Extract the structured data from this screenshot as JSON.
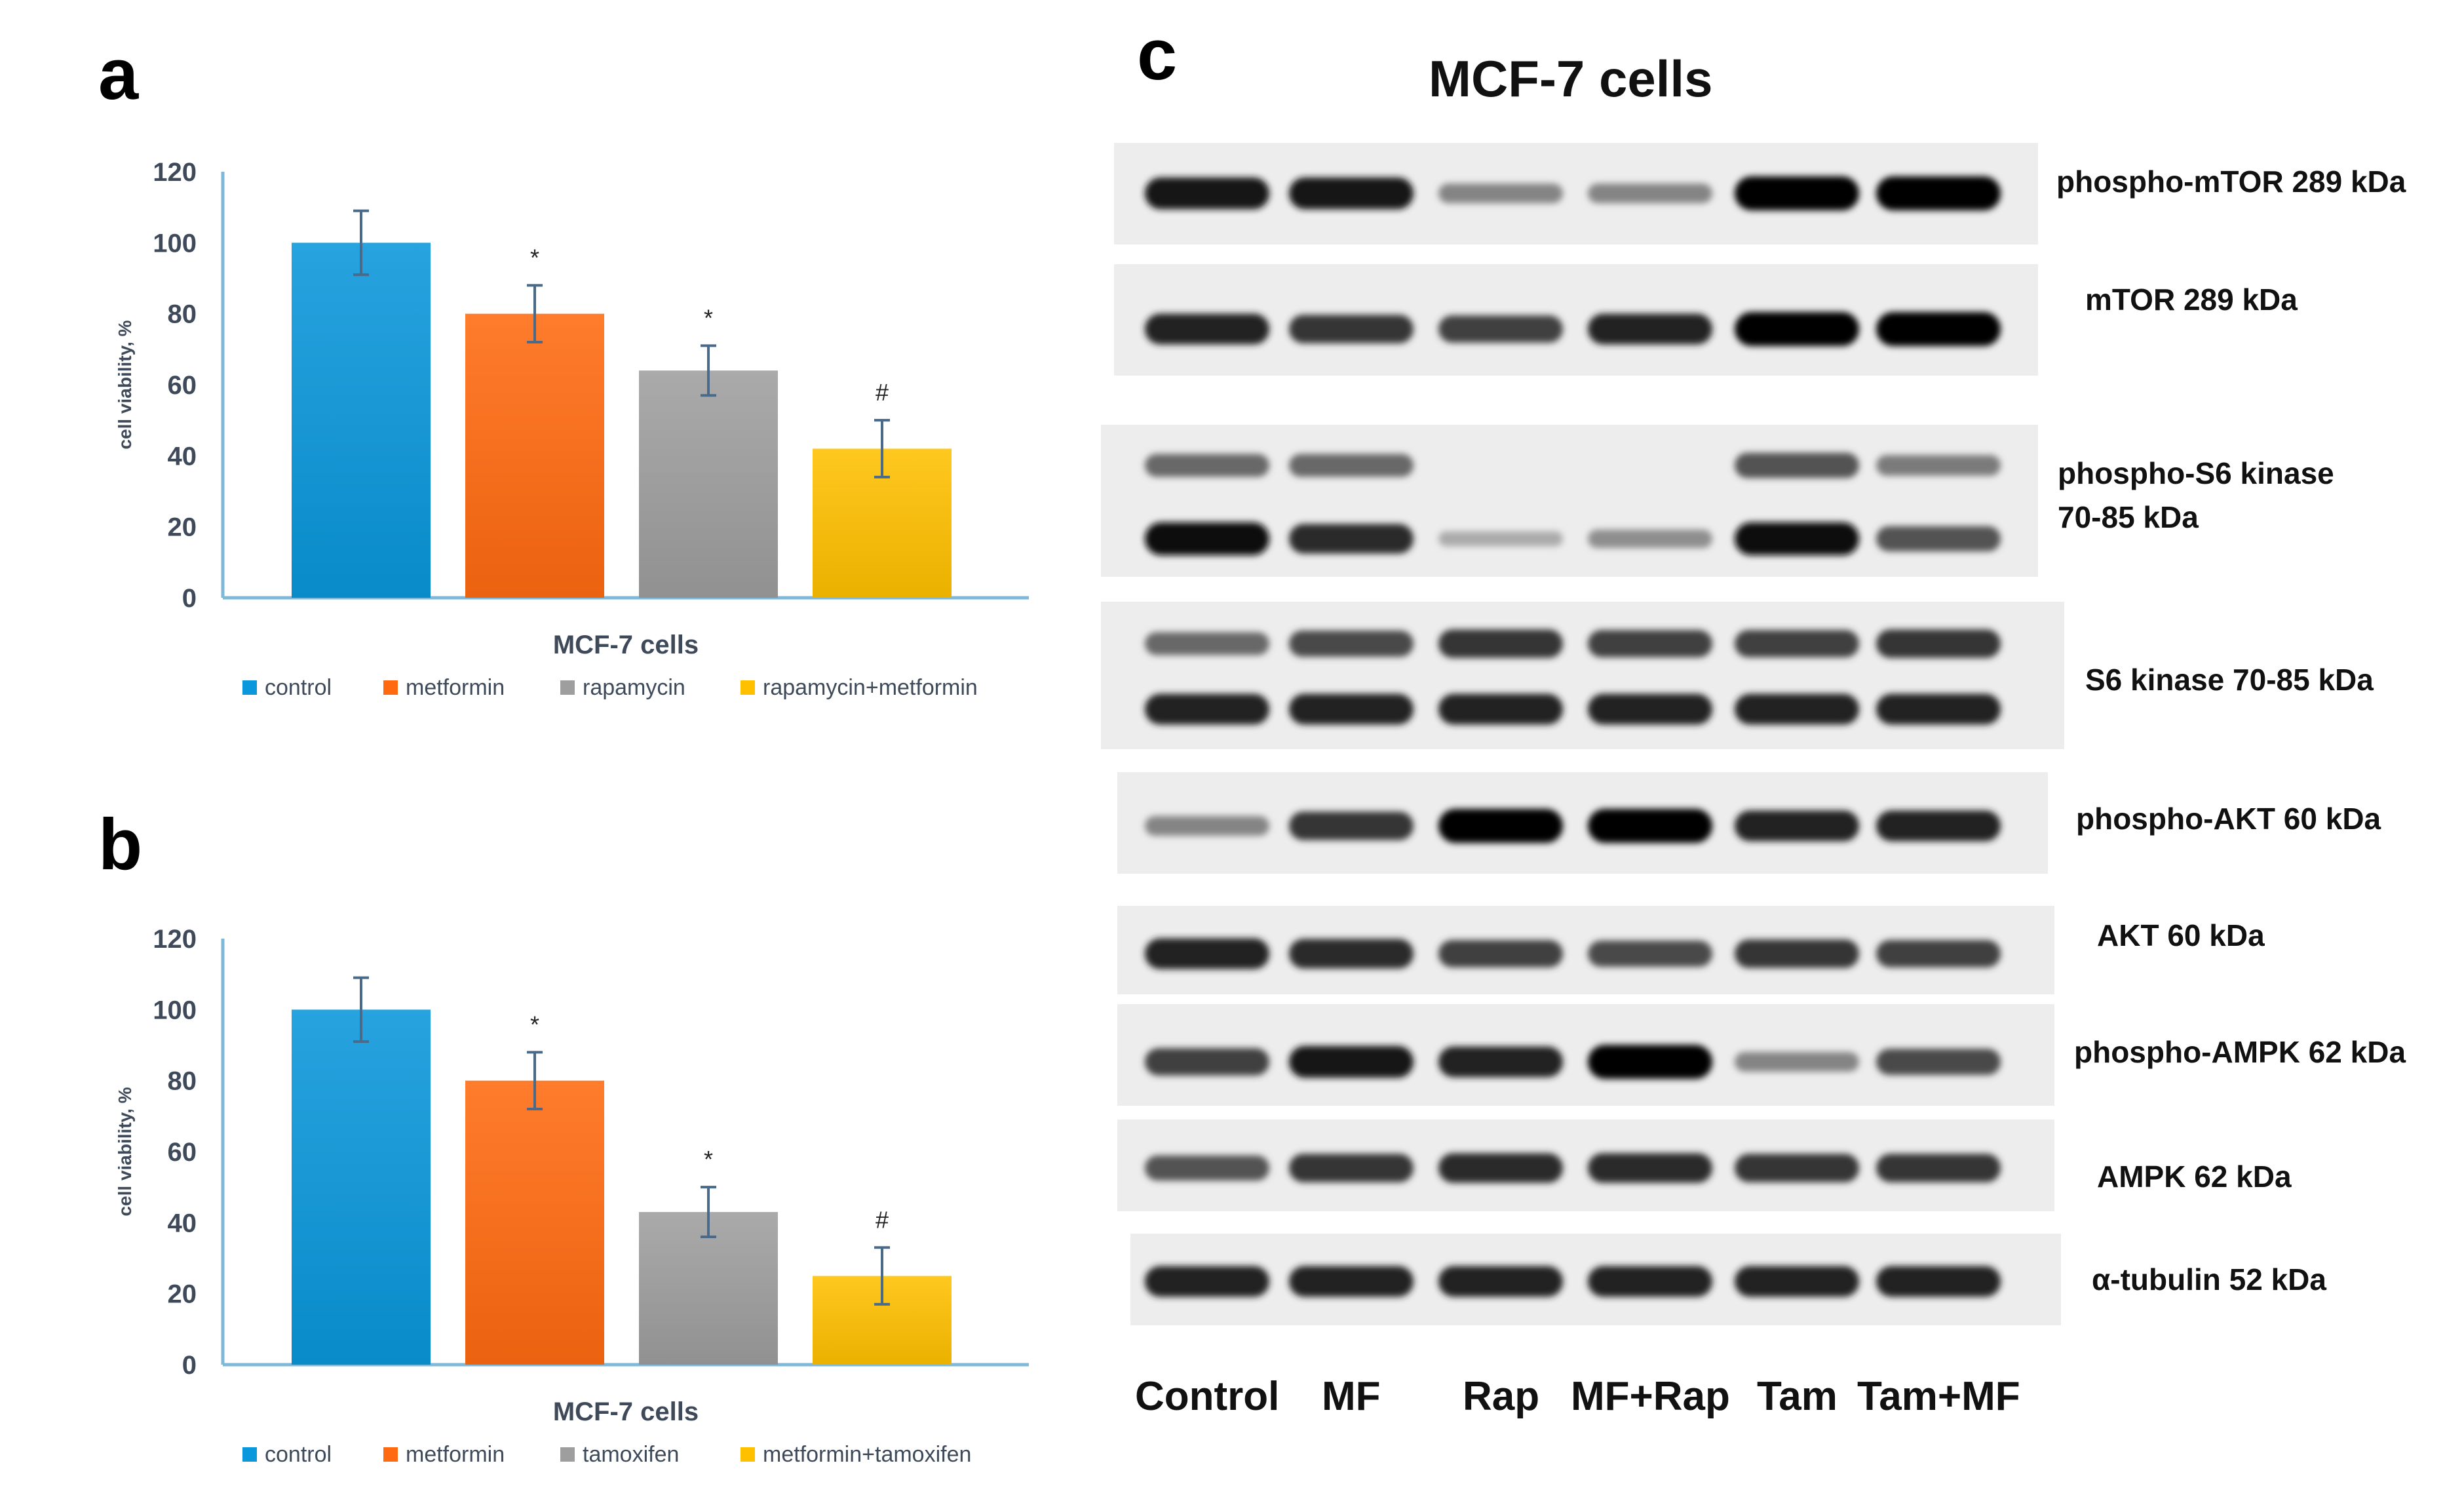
{
  "panels": {
    "a": {
      "letter": "a"
    },
    "b": {
      "letter": "b"
    },
    "c": {
      "letter": "c",
      "title": "MCF-7 cells"
    }
  },
  "chart_data": [
    {
      "id": "a",
      "type": "bar",
      "categories": [
        "control",
        "metformin",
        "rapamycin",
        "rapamycin+metformin"
      ],
      "values": [
        100,
        80,
        64,
        42
      ],
      "errors": [
        9,
        8,
        7,
        8
      ],
      "significance": [
        "",
        "*",
        "*",
        "#"
      ],
      "xlabel": "MCF-7 cells",
      "ylabel": "cell viability, %",
      "ylim": [
        0,
        120
      ],
      "yticks": [
        0,
        20,
        40,
        60,
        80,
        100,
        120
      ],
      "legend": [
        "control",
        "metformin",
        "rapamycin",
        "rapamycin+metformin"
      ],
      "legend_position": "bottom",
      "grid": false,
      "colors": [
        "#0A97DB",
        "#FF6A10",
        "#9E9E9E",
        "#FFC000"
      ]
    },
    {
      "id": "b",
      "type": "bar",
      "categories": [
        "control",
        "metformin",
        "tamoxifen",
        "metformin+tamoxifen"
      ],
      "values": [
        100,
        80,
        43,
        25
      ],
      "errors": [
        9,
        8,
        7,
        8
      ],
      "significance": [
        "",
        "*",
        "*",
        "#"
      ],
      "xlabel": "MCF-7 cells",
      "ylabel": "cell viability, %",
      "ylim": [
        0,
        120
      ],
      "yticks": [
        0,
        20,
        40,
        60,
        80,
        100,
        120
      ],
      "legend": [
        "control",
        "metformin",
        "tamoxifen",
        "metformin+tamoxifen"
      ],
      "legend_position": "bottom",
      "grid": false,
      "colors": [
        "#0A97DB",
        "#FF6A10",
        "#9E9E9E",
        "#FFC000"
      ]
    }
  ],
  "blot": {
    "lanes": [
      "Control",
      "MF",
      "Rap",
      "MF+Rap",
      "Tam",
      "Tam+MF"
    ],
    "rows": [
      {
        "label": "phospho-mTOR 289 kDa",
        "bands": [
          [
            0.9,
            0.9,
            0.35,
            0.35,
            1.0,
            1.0
          ]
        ]
      },
      {
        "label": "mTOR 289 kDa",
        "bands": [
          [
            0.85,
            0.75,
            0.7,
            0.85,
            1.0,
            1.0
          ]
        ]
      },
      {
        "label": "phospho-S6 kinase",
        "label2": "70-85 kDa",
        "bands": [
          [
            0.5,
            0.5,
            0.0,
            0.0,
            0.6,
            0.4
          ],
          [
            0.95,
            0.8,
            0.15,
            0.3,
            0.95,
            0.6
          ]
        ]
      },
      {
        "label": "S6 kinase 70-85 kDa",
        "bands": [
          [
            0.5,
            0.65,
            0.75,
            0.7,
            0.7,
            0.75
          ],
          [
            0.85,
            0.85,
            0.85,
            0.85,
            0.85,
            0.85
          ]
        ]
      },
      {
        "label": "phospho-AKT 60 kDa",
        "bands": [
          [
            0.35,
            0.75,
            1.0,
            1.0,
            0.85,
            0.85
          ]
        ]
      },
      {
        "label": "AKT 60 kDa",
        "bands": [
          [
            0.85,
            0.8,
            0.7,
            0.65,
            0.75,
            0.7
          ]
        ]
      },
      {
        "label": "phospho-AMPK 62 kDa",
        "bands": [
          [
            0.7,
            0.9,
            0.85,
            1.0,
            0.35,
            0.65
          ]
        ]
      },
      {
        "label": "AMPK 62 kDa",
        "bands": [
          [
            0.6,
            0.75,
            0.8,
            0.8,
            0.75,
            0.75
          ]
        ]
      },
      {
        "label": "α-tubulin 52 kDa",
        "bands": [
          [
            0.85,
            0.85,
            0.85,
            0.85,
            0.85,
            0.85
          ]
        ]
      }
    ]
  }
}
